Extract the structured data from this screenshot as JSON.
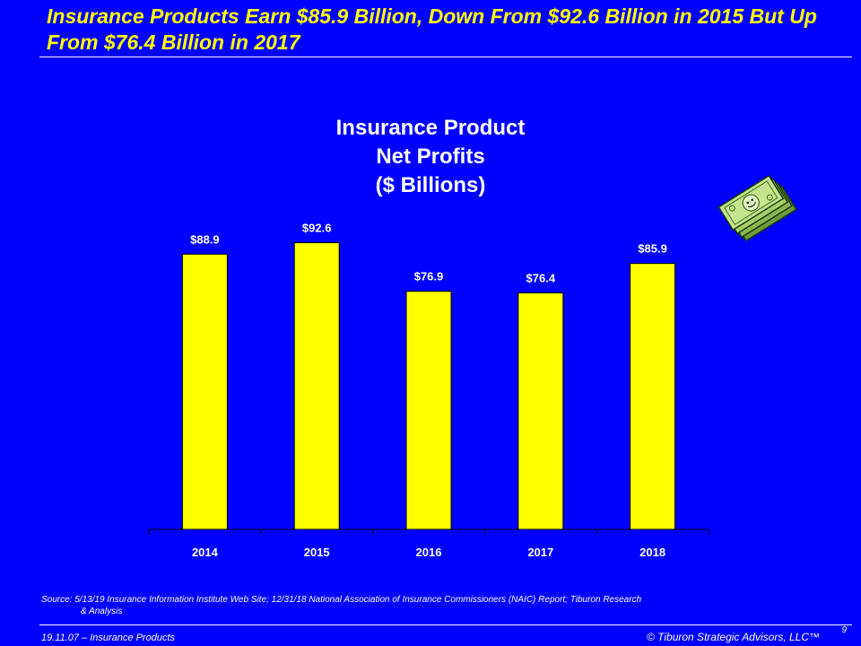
{
  "slide": {
    "title": "Insurance Products Earn $85.9 Billion, Down From $92.6 Billion in 2015 But Up From $76.4 Billion in 2017",
    "source_line1": "Source:   5/13/19 Insurance Information Institute Web Site; 12/31/18  National Association of Insurance Commissioners (NAIC) Report; Tiburon Research",
    "source_line2": "& Analysis",
    "footer_left": "19.11.07 – Insurance Products",
    "footer_right": "© Tiburon Strategic Advisors, LLC™",
    "page_number": "9",
    "icon": "money-stack-icon"
  },
  "colors": {
    "background": "#0000ff",
    "title": "#ffff00",
    "bar": "#ffff00",
    "text": "#ffffff"
  },
  "chart_data": {
    "type": "bar",
    "title_lines": [
      "Insurance Product",
      "Net Profits",
      "($ Billions)"
    ],
    "categories": [
      "2014",
      "2015",
      "2016",
      "2017",
      "2018"
    ],
    "values": [
      88.9,
      92.6,
      76.9,
      76.4,
      85.9
    ],
    "data_labels": [
      "$88.9",
      "$92.6",
      "$76.9",
      "$76.4",
      "$85.9"
    ],
    "ylim": [
      0,
      100
    ],
    "grid": false,
    "legend": "none"
  }
}
